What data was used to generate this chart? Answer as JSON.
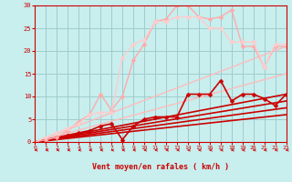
{
  "background_color": "#c8eeee",
  "grid_color": "#a0cccc",
  "xlabel": "Vent moyen/en rafales ( km/h )",
  "xlabel_color": "#cc0000",
  "tick_color": "#cc0000",
  "xlim": [
    0,
    23
  ],
  "ylim": [
    0,
    30
  ],
  "yticks": [
    0,
    5,
    10,
    15,
    20,
    25,
    30
  ],
  "xticks": [
    0,
    1,
    2,
    3,
    4,
    5,
    6,
    7,
    8,
    9,
    10,
    11,
    12,
    13,
    14,
    15,
    16,
    17,
    18,
    19,
    20,
    21,
    22,
    23
  ],
  "lines": [
    {
      "x": [
        0,
        23
      ],
      "y": [
        0,
        21.0
      ],
      "color": "#ffbbbb",
      "lw": 1.0,
      "marker": null,
      "ms": 0
    },
    {
      "x": [
        0,
        23
      ],
      "y": [
        0,
        15.0
      ],
      "color": "#ffbbbb",
      "lw": 1.0,
      "marker": null,
      "ms": 0
    },
    {
      "x": [
        0,
        23
      ],
      "y": [
        0,
        10.5
      ],
      "color": "#cc0000",
      "lw": 1.2,
      "marker": null,
      "ms": 0
    },
    {
      "x": [
        0,
        23
      ],
      "y": [
        0,
        9.0
      ],
      "color": "#cc0000",
      "lw": 1.2,
      "marker": null,
      "ms": 0
    },
    {
      "x": [
        0,
        23
      ],
      "y": [
        0,
        7.5
      ],
      "color": "#cc0000",
      "lw": 1.2,
      "marker": null,
      "ms": 0
    },
    {
      "x": [
        0,
        23
      ],
      "y": [
        0,
        6.0
      ],
      "color": "#cc0000",
      "lw": 1.2,
      "marker": null,
      "ms": 0
    },
    {
      "x": [
        0,
        1,
        2,
        3,
        4,
        5,
        6,
        7,
        8,
        9,
        10,
        11,
        12,
        13,
        14,
        15,
        16,
        17,
        18,
        19,
        20,
        21,
        22,
        23
      ],
      "y": [
        0,
        0.5,
        1.0,
        1.5,
        2.0,
        2.5,
        3.5,
        4.0,
        0.5,
        3.5,
        5.0,
        5.5,
        5.5,
        5.5,
        10.5,
        10.5,
        10.5,
        13.5,
        9.0,
        10.5,
        10.5,
        9.5,
        8.0,
        10.5
      ],
      "color": "#cc0000",
      "lw": 1.2,
      "marker": "D",
      "ms": 2.5
    },
    {
      "x": [
        0,
        1,
        2,
        3,
        4,
        5,
        6,
        7,
        8,
        9,
        10,
        11,
        12,
        13,
        14,
        15,
        16,
        17,
        18,
        19,
        20,
        21,
        22,
        23
      ],
      "y": [
        0,
        0.5,
        1.0,
        2.5,
        4.5,
        6.0,
        10.5,
        7.0,
        10.0,
        18.0,
        21.5,
        26.5,
        27.0,
        30.0,
        30.0,
        27.5,
        27.0,
        27.5,
        29.0,
        21.0,
        21.0,
        16.5,
        21.0,
        21.0
      ],
      "color": "#ffaaaa",
      "lw": 1.0,
      "marker": "D",
      "ms": 2.5
    },
    {
      "x": [
        0,
        1,
        2,
        3,
        4,
        5,
        6,
        7,
        8,
        9,
        10,
        11,
        12,
        13,
        14,
        15,
        16,
        17,
        18,
        19,
        20,
        21,
        22,
        23
      ],
      "y": [
        0,
        1.0,
        2.0,
        3.0,
        4.0,
        6.0,
        6.5,
        6.5,
        18.5,
        21.5,
        22.5,
        26.5,
        26.5,
        27.5,
        27.5,
        27.5,
        25.0,
        25.0,
        22.0,
        22.0,
        22.0,
        16.5,
        21.5,
        21.5
      ],
      "color": "#ffcccc",
      "lw": 1.0,
      "marker": "D",
      "ms": 2.5
    }
  ]
}
